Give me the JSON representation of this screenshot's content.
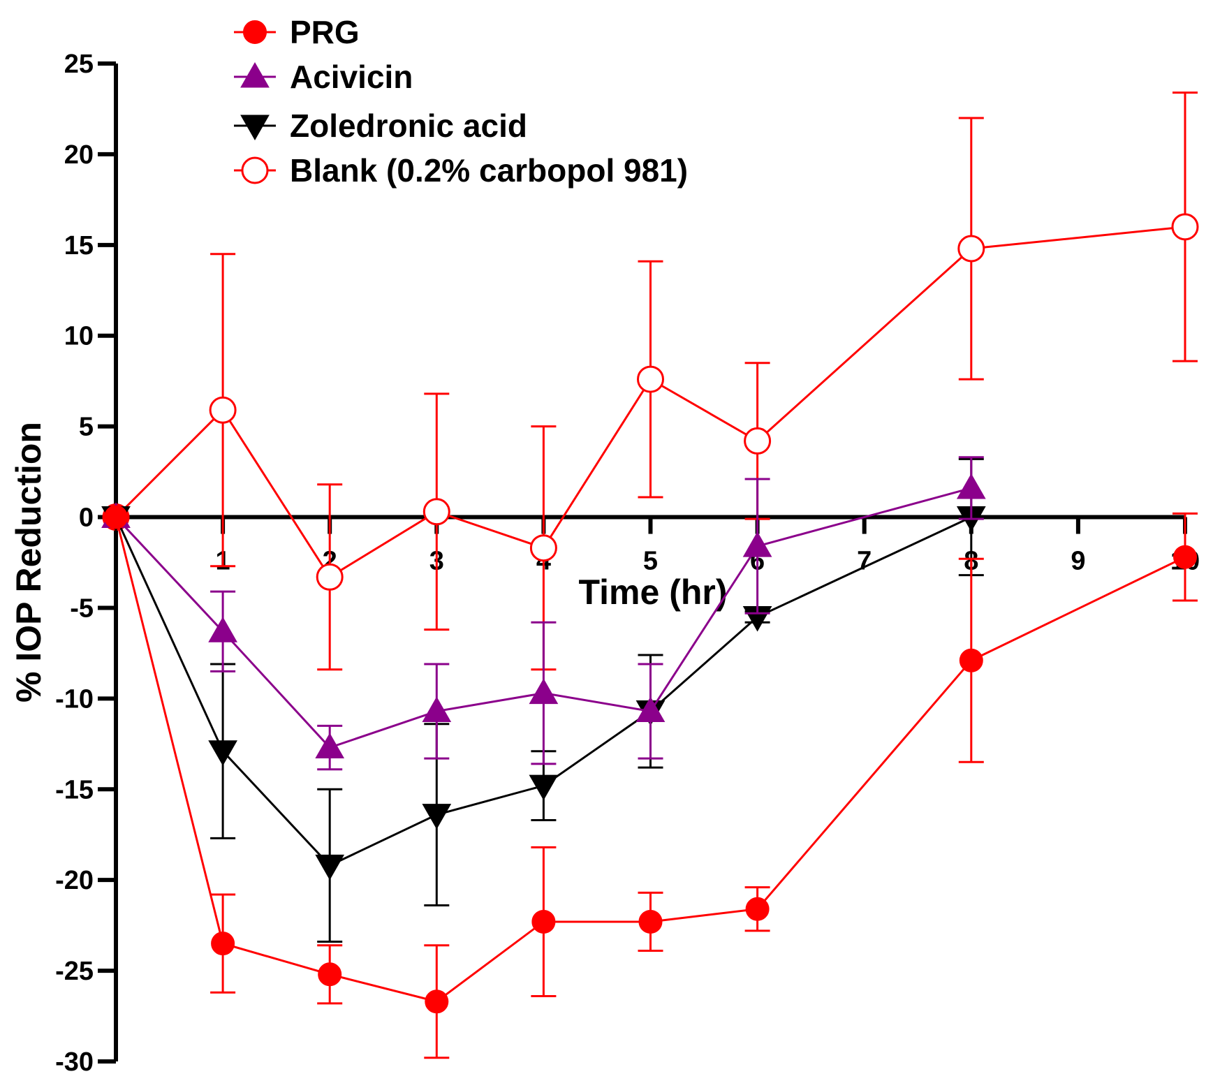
{
  "chart_data": {
    "type": "line",
    "title": "",
    "xlabel": "Time (hr)",
    "ylabel": "% IOP Reduction",
    "xlim": [
      0,
      10
    ],
    "ylim": [
      -30,
      25
    ],
    "x_ticks": [
      "1",
      "2",
      "3",
      "4",
      "5",
      "6",
      "7",
      "8",
      "9",
      "10"
    ],
    "y_ticks": [
      "25",
      "20",
      "15",
      "10",
      "5",
      "0",
      "-5",
      "-10",
      "-15",
      "-20",
      "-25",
      "-30"
    ],
    "legend_position": "top-left",
    "series": [
      {
        "name": "PRG",
        "color": "#ff0000",
        "marker": "filled-circle",
        "x": [
          0,
          1,
          2,
          3,
          4,
          5,
          6,
          8,
          10
        ],
        "values": [
          0,
          -23.5,
          -25.2,
          -26.7,
          -22.3,
          -22.3,
          -21.6,
          -7.9,
          -2.2
        ],
        "error": [
          0,
          2.7,
          1.6,
          3.1,
          4.1,
          1.6,
          1.2,
          5.6,
          2.4
        ]
      },
      {
        "name": "Acivicin",
        "color": "#8b008b",
        "marker": "triangle-up",
        "x": [
          0,
          1,
          2,
          3,
          4,
          5,
          6,
          8
        ],
        "values": [
          0,
          -6.3,
          -12.7,
          -10.7,
          -9.7,
          -10.7,
          -1.6,
          1.6
        ],
        "error": [
          0,
          2.2,
          1.2,
          2.6,
          3.9,
          2.6,
          3.7,
          1.7
        ]
      },
      {
        "name": "Zoledronic acid",
        "color": "#000000",
        "marker": "triangle-down",
        "x": [
          0,
          1,
          2,
          3,
          4,
          5,
          6,
          8
        ],
        "values": [
          0,
          -12.9,
          -19.2,
          -16.4,
          -14.8,
          -10.7,
          -5.5,
          0
        ],
        "error": [
          0,
          4.8,
          4.2,
          5.0,
          1.9,
          3.1,
          0.3,
          3.2
        ]
      },
      {
        "name": "Blank (0.2% carbopol 981)",
        "color": "#ff0000",
        "marker": "open-circle",
        "x": [
          0,
          1,
          2,
          3,
          4,
          5,
          6,
          8,
          10
        ],
        "values": [
          0,
          5.9,
          -3.3,
          0.3,
          -1.7,
          7.6,
          4.2,
          14.8,
          16.0
        ],
        "error": [
          0,
          8.6,
          5.1,
          6.5,
          6.7,
          6.5,
          4.3,
          7.2,
          7.4
        ]
      }
    ]
  }
}
